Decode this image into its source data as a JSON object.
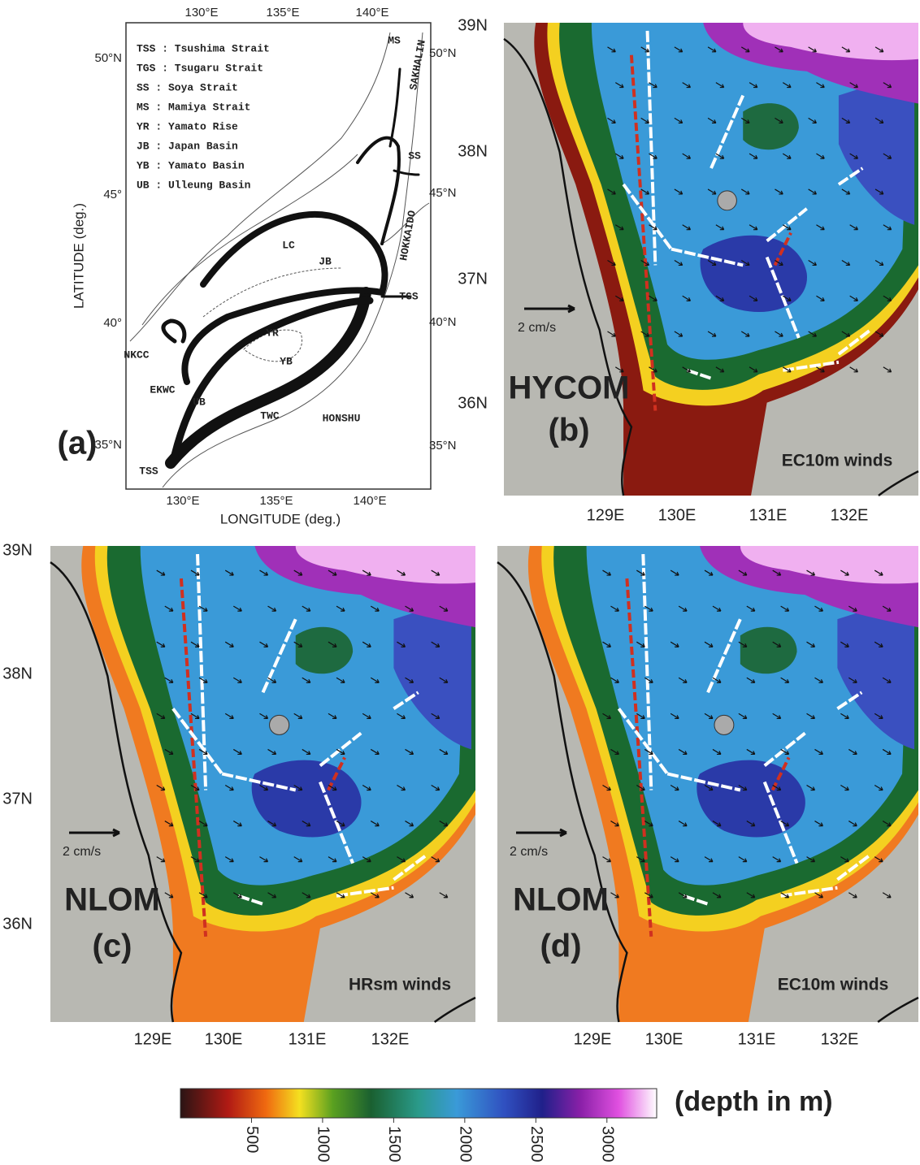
{
  "panel_a": {
    "label": "(a)",
    "x_axis_label": "LONGITUDE (deg.)",
    "y_axis_label": "LATITUDE (deg.)",
    "top_ticks": [
      "130°E",
      "135°E",
      "140°E"
    ],
    "bottom_ticks": [
      "130°E",
      "135°E",
      "140°E"
    ],
    "left_ticks": [
      "50°N",
      "45°",
      "40°",
      "35°N"
    ],
    "right_ticks": [
      "50°N",
      "45°N",
      "40°N",
      "35°N"
    ],
    "legend": [
      "TSS : Tsushima Strait",
      "TGS : Tsugaru Strait",
      "SS : Soya Strait",
      "MS : Mamiya Strait",
      "YR : Yamato Rise",
      "JB : Japan Basin",
      "YB : Yamato Basin",
      "UB : Ulleung Basin"
    ],
    "map_labels": [
      "LC",
      "JB",
      "YR",
      "YB",
      "UB",
      "TWC",
      "NKCC",
      "EKWC",
      "TSS",
      "TGS",
      "SS",
      "MS",
      "HOKKAIDO",
      "HONSHU",
      "SAKHALIN"
    ]
  },
  "panel_b": {
    "model": "HYCOM",
    "label": "(b)",
    "winds": "EC10m winds",
    "scale": "2 cm/s",
    "lat_ticks": [
      "39N",
      "38N",
      "37N",
      "36N"
    ],
    "lon_ticks": [
      "129E",
      "130E",
      "131E",
      "132E"
    ]
  },
  "panel_c": {
    "model": "NLOM",
    "label": "(c)",
    "winds": "HRsm winds",
    "scale": "2 cm/s",
    "lat_ticks": [
      "39N",
      "38N",
      "37N",
      "36N"
    ],
    "lon_ticks": [
      "129E",
      "130E",
      "131E",
      "132E"
    ]
  },
  "panel_d": {
    "model": "NLOM",
    "label": "(d)",
    "winds": "EC10m winds",
    "scale": "2 cm/s",
    "lon_ticks": [
      "129E",
      "130E",
      "131E",
      "132E"
    ]
  },
  "colorbar": {
    "title": "(depth in m)",
    "range": [
      0,
      3350
    ],
    "ticks": [
      500,
      1000,
      1500,
      2000,
      2500,
      3000
    ]
  }
}
